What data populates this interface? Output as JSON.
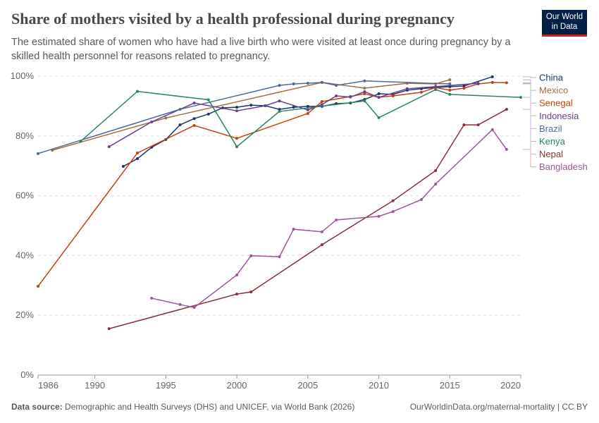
{
  "header": {
    "title": "Share of mothers visited by a health professional during pregnancy",
    "subtitle": "The estimated share of women who have had a live birth who were visited at least once during pregnancy by a skilled health personnel for reasons related to pregnancy.",
    "logo": "Our World in Data"
  },
  "footer": {
    "source_label": "Data source:",
    "source": "Demographic and Health Surveys (DHS) and UNICEF, via World Bank (2026)",
    "url": "OurWorldinData.org/maternal-mortality | CC BY"
  },
  "chart_data": {
    "type": "line",
    "xlim": [
      1986,
      2020
    ],
    "ylim": [
      0,
      100
    ],
    "grid": "horizontal dashed",
    "legend": "right",
    "x_ticks": [
      "1986",
      "1990",
      "1995",
      "2000",
      "2005",
      "2010",
      "2015",
      "2020"
    ],
    "y_ticks": [
      "0%",
      "20%",
      "40%",
      "60%",
      "80%",
      "100%"
    ],
    "series": [
      {
        "name": "China",
        "color": "#18376b",
        "points": [
          [
            1992,
            69.8
          ],
          [
            1993,
            72.4
          ],
          [
            1994,
            76.2
          ],
          [
            1995,
            78.8
          ],
          [
            1996,
            83.7
          ],
          [
            1997,
            85.8
          ],
          [
            1998,
            87.3
          ],
          [
            1999,
            89.4
          ],
          [
            2000,
            89.6
          ],
          [
            2001,
            90.3
          ],
          [
            2002,
            90.1
          ],
          [
            2003,
            88.9
          ],
          [
            2004,
            89.6
          ],
          [
            2005,
            89.9
          ],
          [
            2006,
            89.9
          ],
          [
            2007,
            90.8
          ],
          [
            2008,
            91.0
          ],
          [
            2009,
            92.2
          ],
          [
            2010,
            94.1
          ],
          [
            2011,
            93.9
          ],
          [
            2012,
            95.3
          ],
          [
            2013,
            95.8
          ],
          [
            2014,
            96.2
          ],
          [
            2015,
            96.5
          ],
          [
            2016,
            96.7
          ],
          [
            2018,
            99.8
          ]
        ]
      },
      {
        "name": "Mexico",
        "color": "#a2703b",
        "points": [
          [
            1987,
            75.2
          ],
          [
            1995,
            86.0
          ],
          [
            2006,
            97.9
          ],
          [
            2009,
            96.0
          ],
          [
            2012,
            97.6
          ],
          [
            2014,
            97.4
          ],
          [
            2015,
            98.8
          ]
        ]
      },
      {
        "name": "Senegal",
        "color": "#c4410d",
        "points": [
          [
            1986,
            29.7
          ],
          [
            1993,
            74.3
          ],
          [
            1997,
            83.5
          ],
          [
            2000,
            79.2
          ],
          [
            2005,
            87.5
          ],
          [
            2006,
            91.5
          ],
          [
            2008,
            93.2
          ],
          [
            2009,
            94.1
          ],
          [
            2010,
            92.9
          ],
          [
            2011,
            93.4
          ],
          [
            2013,
            94.6
          ],
          [
            2014,
            96.2
          ],
          [
            2015,
            95.3
          ],
          [
            2016,
            96.0
          ],
          [
            2017,
            97.4
          ],
          [
            2018,
            97.9
          ],
          [
            2019,
            97.8
          ]
        ]
      },
      {
        "name": "Indonesia",
        "color": "#6d3e91",
        "points": [
          [
            1991,
            76.4
          ],
          [
            1994,
            84.7
          ],
          [
            1997,
            91.0
          ],
          [
            2000,
            88.4
          ],
          [
            2002,
            90.1
          ],
          [
            2003,
            91.7
          ],
          [
            2005,
            88.7
          ],
          [
            2006,
            90.5
          ],
          [
            2007,
            93.4
          ],
          [
            2008,
            93.0
          ],
          [
            2009,
            94.8
          ],
          [
            2010,
            92.9
          ],
          [
            2012,
            95.8
          ],
          [
            2014,
            96.5
          ],
          [
            2017,
            97.6
          ]
        ]
      },
      {
        "name": "Brazil",
        "color": "#4c6a9c",
        "points": [
          [
            1986,
            74.1
          ],
          [
            1996,
            88.9
          ],
          [
            2003,
            96.9
          ],
          [
            2004,
            97.4
          ],
          [
            2005,
            97.6
          ],
          [
            2006,
            97.9
          ],
          [
            2007,
            96.9
          ],
          [
            2009,
            98.4
          ],
          [
            2015,
            97.4
          ]
        ]
      },
      {
        "name": "Kenya",
        "color": "#2c8465",
        "points": [
          [
            1989,
            78.2
          ],
          [
            1993,
            94.9
          ],
          [
            1998,
            92.1
          ],
          [
            2000,
            76.4
          ],
          [
            2003,
            88.2
          ],
          [
            2009,
            91.7
          ],
          [
            2010,
            86.1
          ],
          [
            2014,
            95.5
          ],
          [
            2015,
            93.9
          ],
          [
            2020,
            92.9
          ]
        ]
      },
      {
        "name": "Nepal",
        "color": "#883039",
        "points": [
          [
            1991,
            15.5
          ],
          [
            2000,
            27.1
          ],
          [
            2001,
            27.8
          ],
          [
            2006,
            43.6
          ],
          [
            2011,
            58.3
          ],
          [
            2014,
            68.4
          ],
          [
            2016,
            83.7
          ],
          [
            2017,
            83.7
          ],
          [
            2019,
            88.9
          ]
        ]
      },
      {
        "name": "Bangladesh",
        "color": "#a2559c",
        "points": [
          [
            1994,
            25.7
          ],
          [
            1996,
            23.6
          ],
          [
            1997,
            22.6
          ],
          [
            2000,
            33.5
          ],
          [
            2001,
            39.9
          ],
          [
            2003,
            39.6
          ],
          [
            2004,
            48.8
          ],
          [
            2006,
            47.9
          ],
          [
            2007,
            51.9
          ],
          [
            2010,
            53.1
          ],
          [
            2011,
            54.7
          ],
          [
            2013,
            58.7
          ],
          [
            2014,
            63.9
          ],
          [
            2018,
            82.1
          ],
          [
            2019,
            75.5
          ]
        ]
      }
    ]
  }
}
